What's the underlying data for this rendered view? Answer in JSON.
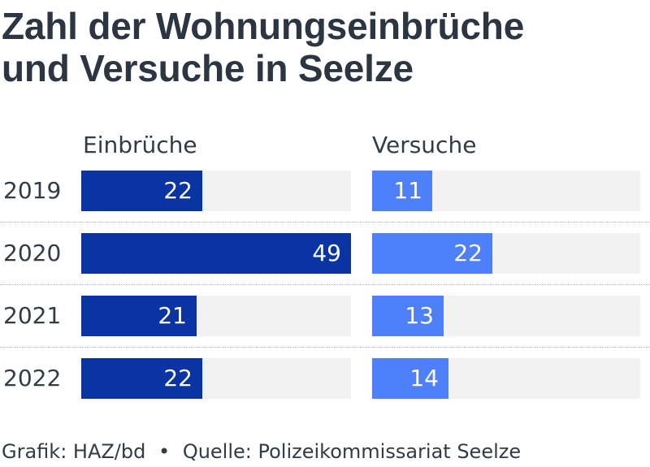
{
  "title_line1": "Zahl der Wohnungseinbrüche",
  "title_line2": "und Versuche in Seelze",
  "footer": {
    "grafik": "Grafik: HAZ/bd",
    "separator": "•",
    "quelle": "Quelle: Polizeikommissariat Seelze"
  },
  "colors": {
    "einbrueche": "#0a34a4",
    "versuche": "#4f80fb",
    "track": "#f2f2f2"
  },
  "chart_data": {
    "type": "bar",
    "orientation": "horizontal",
    "title": "Zahl der Wohnungseinbrüche und Versuche in Seelze",
    "categories": [
      "2019",
      "2020",
      "2021",
      "2022"
    ],
    "series": [
      {
        "name": "Einbrüche",
        "values": [
          22,
          49,
          21,
          22
        ]
      },
      {
        "name": "Versuche",
        "values": [
          11,
          22,
          13,
          14
        ]
      }
    ],
    "xlim": [
      0,
      49
    ],
    "grid": false
  }
}
